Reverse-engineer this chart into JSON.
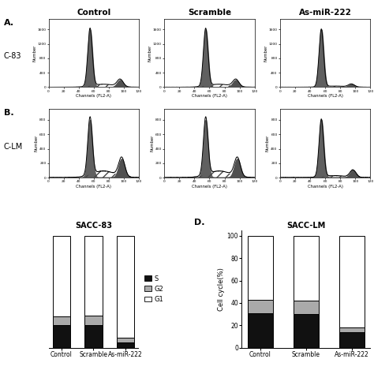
{
  "col_labels": [
    "Control",
    "Scramble",
    "As-miR-222"
  ],
  "panel_C_title": "SACC-83",
  "panel_D_title": "SACC-LM",
  "panel_D_label": "D.",
  "xlabel_flow": "Channels (FL2-A)",
  "ylabel_flow": "Number",
  "ylabel_bar": "Cell cycle(%)",
  "legend_labels": [
    "S",
    "G2",
    "G1"
  ],
  "legend_colors": [
    "#111111",
    "#aaaaaa",
    "#ffffff"
  ],
  "sacc83_S": [
    20,
    20,
    5
  ],
  "sacc83_G2": [
    8,
    9,
    4
  ],
  "sacc83_G1": [
    72,
    71,
    91
  ],
  "sacclm_S": [
    31,
    30,
    14
  ],
  "sacclm_G2": [
    12,
    12,
    4
  ],
  "sacclm_G1": [
    57,
    58,
    82
  ],
  "bar_color_S": "#111111",
  "bar_color_G2": "#aaaaaa",
  "bar_color_G1": "#ffffff",
  "bar_edge_color": "#000000",
  "bg_color": "#ffffff"
}
